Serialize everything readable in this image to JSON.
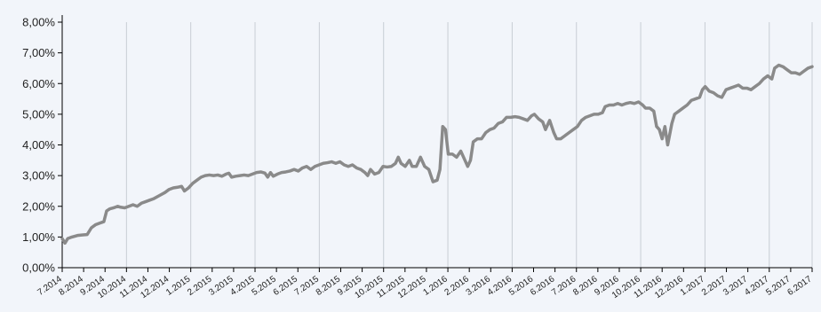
{
  "chart_data": {
    "type": "line",
    "title": "",
    "xlabel": "",
    "ylabel": "",
    "ylim": [
      0,
      8
    ],
    "y_ticks": [
      0,
      1,
      2,
      3,
      4,
      5,
      6,
      7,
      8
    ],
    "y_tick_labels": [
      "0,00%",
      "1,00%",
      "2,00%",
      "3,00%",
      "4,00%",
      "5,00%",
      "6,00%",
      "7,00%",
      "8,00%"
    ],
    "grid": "vertical",
    "legend": "none",
    "colors": {
      "background": "#f2f5fa",
      "line": "#8a8a8a",
      "grid": "#c8cdd4",
      "axis": "#000000"
    },
    "categories": [
      "7.2014",
      "8.2014",
      "9.2014",
      "10.2014",
      "11.2014",
      "12.2014",
      "1.2015",
      "2.2015",
      "3.2015",
      "4.2015",
      "5.2015",
      "6.2015",
      "7.2015",
      "8.2015",
      "9.2015",
      "10.2015",
      "11.2015",
      "12.2015",
      "1.2016",
      "2.2016",
      "3.2016",
      "4.2016",
      "5.2016",
      "6.2016",
      "7.2016",
      "8.2016",
      "9.2016",
      "10.2016",
      "11.2016",
      "12.2016",
      "1.2017",
      "2.2017",
      "3.2017",
      "4.2017",
      "5.2017",
      "6.2017"
    ],
    "vertical_gridlines_at": [
      "10.2014",
      "1.2015",
      "4.2015",
      "7.2015",
      "10.2015",
      "1.2016",
      "4.2016",
      "7.2016",
      "10.2016",
      "1.2017",
      "4.2017",
      "6.2017"
    ],
    "series": [
      {
        "values": [
          [
            0.0,
            0.95
          ],
          [
            0.1,
            0.8
          ],
          [
            0.2,
            0.95
          ],
          [
            0.35,
            1.0
          ],
          [
            0.55,
            1.05
          ],
          [
            0.75,
            1.07
          ],
          [
            0.9,
            1.08
          ],
          [
            1.05,
            1.3
          ],
          [
            1.2,
            1.4
          ],
          [
            1.35,
            1.45
          ],
          [
            1.5,
            1.5
          ],
          [
            1.6,
            1.85
          ],
          [
            1.72,
            1.92
          ],
          [
            1.85,
            1.95
          ],
          [
            2.0,
            2.0
          ],
          [
            2.1,
            1.97
          ],
          [
            2.25,
            1.95
          ],
          [
            2.4,
            2.0
          ],
          [
            2.55,
            2.05
          ],
          [
            2.7,
            2.0
          ],
          [
            2.85,
            2.1
          ],
          [
            3.0,
            2.15
          ],
          [
            3.15,
            2.2
          ],
          [
            3.3,
            2.25
          ],
          [
            3.5,
            2.35
          ],
          [
            3.7,
            2.45
          ],
          [
            3.85,
            2.55
          ],
          [
            4.0,
            2.6
          ],
          [
            4.15,
            2.62
          ],
          [
            4.3,
            2.65
          ],
          [
            4.4,
            2.5
          ],
          [
            4.55,
            2.6
          ],
          [
            4.7,
            2.75
          ],
          [
            4.85,
            2.85
          ],
          [
            5.0,
            2.95
          ],
          [
            5.15,
            3.0
          ],
          [
            5.3,
            3.02
          ],
          [
            5.45,
            3.0
          ],
          [
            5.6,
            3.02
          ],
          [
            5.75,
            2.98
          ],
          [
            5.9,
            3.05
          ],
          [
            6.0,
            3.08
          ],
          [
            6.1,
            2.95
          ],
          [
            6.25,
            2.98
          ],
          [
            6.4,
            3.0
          ],
          [
            6.55,
            3.02
          ],
          [
            6.7,
            3.0
          ],
          [
            6.85,
            3.05
          ],
          [
            7.0,
            3.1
          ],
          [
            7.15,
            3.12
          ],
          [
            7.3,
            3.08
          ],
          [
            7.4,
            2.95
          ],
          [
            7.5,
            3.1
          ],
          [
            7.6,
            2.98
          ],
          [
            7.75,
            3.05
          ],
          [
            7.9,
            3.1
          ],
          [
            8.05,
            3.12
          ],
          [
            8.2,
            3.15
          ],
          [
            8.35,
            3.2
          ],
          [
            8.5,
            3.15
          ],
          [
            8.65,
            3.25
          ],
          [
            8.8,
            3.3
          ],
          [
            8.95,
            3.2
          ],
          [
            9.1,
            3.3
          ],
          [
            9.25,
            3.35
          ],
          [
            9.4,
            3.4
          ],
          [
            9.55,
            3.42
          ],
          [
            9.7,
            3.45
          ],
          [
            9.85,
            3.4
          ],
          [
            10.0,
            3.45
          ],
          [
            10.15,
            3.35
          ],
          [
            10.3,
            3.3
          ],
          [
            10.45,
            3.35
          ],
          [
            10.6,
            3.25
          ],
          [
            10.75,
            3.2
          ],
          [
            10.9,
            3.1
          ],
          [
            11.0,
            3.0
          ],
          [
            11.1,
            3.2
          ],
          [
            11.25,
            3.05
          ],
          [
            11.4,
            3.1
          ],
          [
            11.55,
            3.3
          ],
          [
            11.7,
            3.28
          ],
          [
            11.85,
            3.3
          ],
          [
            12.0,
            3.4
          ],
          [
            12.1,
            3.6
          ],
          [
            12.2,
            3.4
          ],
          [
            12.35,
            3.3
          ],
          [
            12.5,
            3.5
          ],
          [
            12.6,
            3.3
          ],
          [
            12.75,
            3.3
          ],
          [
            12.9,
            3.6
          ],
          [
            13.05,
            3.3
          ],
          [
            13.2,
            3.2
          ],
          [
            13.35,
            2.8
          ],
          [
            13.5,
            2.85
          ],
          [
            13.6,
            3.2
          ],
          [
            13.7,
            4.6
          ],
          [
            13.8,
            4.5
          ],
          [
            13.9,
            3.7
          ],
          [
            14.05,
            3.7
          ],
          [
            14.2,
            3.6
          ],
          [
            14.35,
            3.8
          ],
          [
            14.5,
            3.5
          ],
          [
            14.6,
            3.3
          ],
          [
            14.7,
            3.5
          ],
          [
            14.8,
            4.1
          ],
          [
            14.95,
            4.2
          ],
          [
            15.1,
            4.2
          ],
          [
            15.25,
            4.4
          ],
          [
            15.4,
            4.5
          ],
          [
            15.55,
            4.55
          ],
          [
            15.7,
            4.7
          ],
          [
            15.85,
            4.75
          ],
          [
            16.0,
            4.9
          ],
          [
            16.15,
            4.9
          ],
          [
            16.3,
            4.92
          ],
          [
            16.45,
            4.9
          ],
          [
            16.6,
            4.85
          ],
          [
            16.75,
            4.8
          ],
          [
            16.9,
            4.95
          ],
          [
            17.0,
            5.0
          ],
          [
            17.15,
            4.85
          ],
          [
            17.3,
            4.75
          ],
          [
            17.4,
            4.5
          ],
          [
            17.55,
            4.8
          ],
          [
            17.7,
            4.4
          ],
          [
            17.8,
            4.2
          ],
          [
            17.95,
            4.2
          ],
          [
            18.1,
            4.3
          ],
          [
            18.25,
            4.4
          ],
          [
            18.4,
            4.5
          ],
          [
            18.55,
            4.6
          ],
          [
            18.7,
            4.8
          ],
          [
            18.85,
            4.9
          ],
          [
            19.0,
            4.95
          ],
          [
            19.15,
            5.0
          ],
          [
            19.3,
            5.0
          ],
          [
            19.45,
            5.05
          ],
          [
            19.55,
            5.25
          ],
          [
            19.7,
            5.3
          ],
          [
            19.85,
            5.3
          ],
          [
            20.0,
            5.35
          ],
          [
            20.15,
            5.3
          ],
          [
            20.3,
            5.35
          ],
          [
            20.45,
            5.38
          ],
          [
            20.6,
            5.35
          ],
          [
            20.75,
            5.4
          ],
          [
            20.9,
            5.3
          ],
          [
            21.0,
            5.2
          ],
          [
            21.15,
            5.2
          ],
          [
            21.3,
            5.1
          ],
          [
            21.4,
            4.6
          ],
          [
            21.5,
            4.5
          ],
          [
            21.6,
            4.2
          ],
          [
            21.7,
            4.6
          ],
          [
            21.8,
            4.0
          ],
          [
            21.95,
            4.7
          ],
          [
            22.05,
            5.0
          ],
          [
            22.2,
            5.1
          ],
          [
            22.35,
            5.2
          ],
          [
            22.5,
            5.3
          ],
          [
            22.65,
            5.45
          ],
          [
            22.8,
            5.5
          ],
          [
            22.95,
            5.55
          ],
          [
            23.05,
            5.8
          ],
          [
            23.15,
            5.9
          ],
          [
            23.3,
            5.75
          ],
          [
            23.45,
            5.7
          ],
          [
            23.6,
            5.6
          ],
          [
            23.75,
            5.55
          ],
          [
            23.9,
            5.8
          ],
          [
            24.05,
            5.85
          ],
          [
            24.2,
            5.9
          ],
          [
            24.35,
            5.95
          ],
          [
            24.5,
            5.85
          ],
          [
            24.65,
            5.85
          ],
          [
            24.8,
            5.8
          ],
          [
            24.95,
            5.9
          ],
          [
            25.1,
            6.0
          ],
          [
            25.25,
            6.15
          ],
          [
            25.4,
            6.25
          ],
          [
            25.55,
            6.15
          ],
          [
            25.65,
            6.5
          ],
          [
            25.8,
            6.6
          ],
          [
            25.95,
            6.55
          ],
          [
            26.1,
            6.45
          ],
          [
            26.25,
            6.35
          ],
          [
            26.4,
            6.35
          ],
          [
            26.55,
            6.3
          ],
          [
            26.7,
            6.4
          ],
          [
            26.85,
            6.5
          ],
          [
            27.0,
            6.55
          ]
        ]
      }
    ]
  }
}
